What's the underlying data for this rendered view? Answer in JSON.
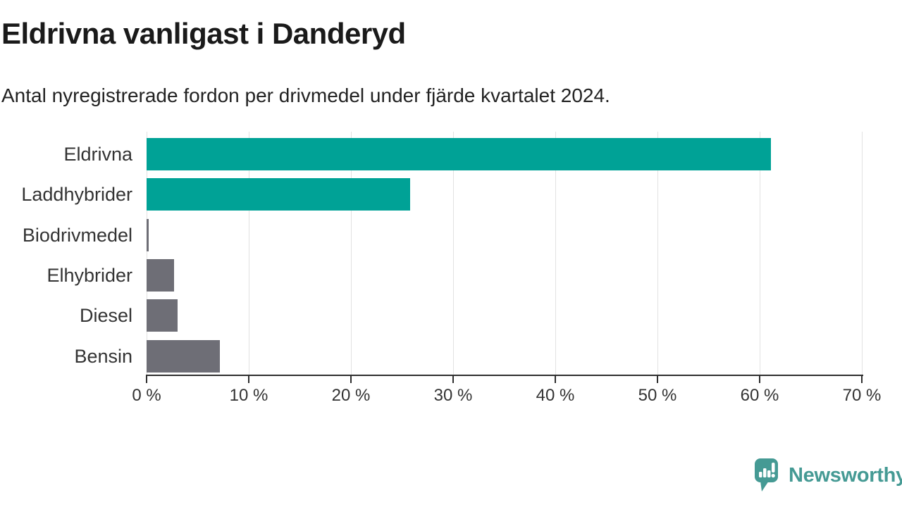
{
  "title": "Eldrivna vanligast i Danderyd",
  "subtitle": "Antal nyregistrerade fordon per drivmedel under fjärde kvartalet 2024.",
  "logo": {
    "text": "Newsworthy",
    "icon": "newsworthy-speech-bubble-chart-icon",
    "color": "#459a94"
  },
  "colors": {
    "background": "#ffffff",
    "teal_bar": "#00a296",
    "gray_bar": "#6e6e76",
    "axis": "#2e2e2e",
    "gridline": "#e2e2e2",
    "title_text": "#1a1a1a",
    "label_text": "#333333"
  },
  "chart_data": {
    "type": "bar",
    "orientation": "horizontal",
    "title": "Eldrivna vanligast i Danderyd",
    "subtitle": "Antal nyregistrerade fordon per drivmedel under fjärde kvartalet 2024.",
    "categories": [
      "Eldrivna",
      "Laddhybrider",
      "Biodrivmedel",
      "Elhybrider",
      "Diesel",
      "Bensin"
    ],
    "values": [
      61.1,
      25.8,
      0.2,
      2.7,
      3.0,
      7.2
    ],
    "bar_colors": [
      "#00a296",
      "#00a296",
      "#6e6e76",
      "#6e6e76",
      "#6e6e76",
      "#6e6e76"
    ],
    "unit": "%",
    "xlabel": "",
    "ylabel": "",
    "xlim": [
      0,
      70
    ],
    "x_ticks": [
      0,
      10,
      20,
      30,
      40,
      50,
      60,
      70
    ],
    "x_tick_labels": [
      "0 %",
      "10 %",
      "20 %",
      "30 %",
      "40 %",
      "50 %",
      "60 %",
      "70 %"
    ],
    "grid": "vertical-only",
    "legend": "none"
  }
}
